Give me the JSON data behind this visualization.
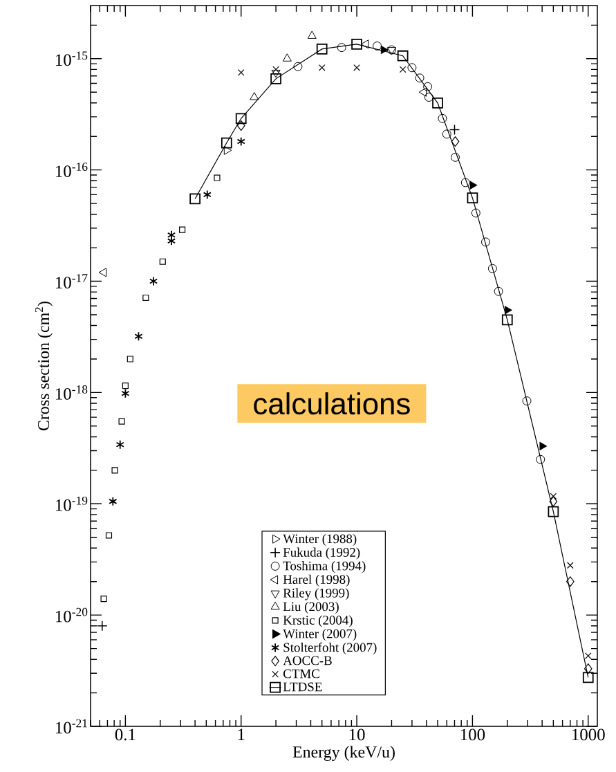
{
  "chart_data": {
    "type": "scatter",
    "xlabel": "Energy (keV/u)",
    "ylabel": "Cross section (cm$^{2}$)",
    "log": "xy",
    "xlim": [
      0.05,
      1200
    ],
    "ylim": [
      1e-21,
      3e-15
    ],
    "xticks": [
      0.1,
      1,
      10,
      100,
      1000
    ],
    "yticks": [
      {
        "value": 1e-21,
        "label": "10$^{-21}$"
      },
      {
        "value": 1e-20,
        "label": "10$^{-20}$"
      },
      {
        "value": 1e-19,
        "label": "10$^{-19}$"
      },
      {
        "value": 1e-18,
        "label": "10$^{-18}$"
      },
      {
        "value": 1e-17,
        "label": "10$^{-17}$"
      },
      {
        "value": 1e-16,
        "label": "10$^{-16}$"
      },
      {
        "value": 1e-15,
        "label": "10$^{-15}$"
      }
    ],
    "grid": false,
    "legend": "bottom",
    "annotations": [
      "calculations"
    ],
    "series": [
      {
        "name": "Winter (1988)",
        "color": "#000000",
        "marker": "triangle",
        "x": [
          0.75
        ],
        "values": [
          1.5e-16
        ]
      },
      {
        "name": "Fukuda (1992)",
        "color": "#000000",
        "marker": "cross",
        "x": [
          0.063,
          70
        ],
        "values": [
          8e-21,
          2.3e-16
        ]
      },
      {
        "name": "Toshima (1994)",
        "color": "#000000",
        "marker": "circle",
        "x": [
          3.1,
          7.4,
          15,
          20,
          30,
          35,
          41,
          42,
          55,
          60,
          71,
          87,
          107,
          130,
          149,
          168,
          295,
          387
        ],
        "values": [
          8.5e-16,
          1.26e-15,
          1.3e-15,
          1.2e-15,
          8.3e-16,
          6.7e-16,
          5.6e-16,
          4.5e-16,
          2.9e-16,
          2.1e-16,
          1.3e-16,
          7.7e-17,
          4.1e-17,
          2.25e-17,
          1.3e-17,
          8.1e-18,
          8.4e-19,
          2.5e-19
        ]
      },
      {
        "name": "Harel (1998)",
        "color": "#000000",
        "marker": "triangle",
        "x": [
          0.065,
          12,
          38
        ],
        "values": [
          1.2e-17,
          1.35e-15,
          5e-16
        ]
      },
      {
        "name": "Riley (1999)",
        "color": "#000000",
        "marker": "triangle",
        "x": [
          2,
          20
        ],
        "values": [
          7.5e-16,
          1.2e-15
        ]
      },
      {
        "name": "Liu (2003)",
        "color": "#000000",
        "marker": "triangle",
        "x": [
          1.3,
          2.5,
          4.1
        ],
        "values": [
          4.5e-16,
          1e-15,
          1.6e-15
        ]
      },
      {
        "name": "Krstic (2004)",
        "color": "#000000",
        "marker": "square",
        "x": [
          0.065,
          0.072,
          0.081,
          0.093,
          0.1,
          0.11,
          0.15,
          0.21,
          0.31,
          0.62
        ],
        "values": [
          1.4e-20,
          5.2e-20,
          2e-19,
          5.5e-19,
          1.15e-18,
          2e-18,
          7.1e-18,
          1.5e-17,
          2.9e-17,
          8.5e-17
        ]
      },
      {
        "name": "Winter (2007)",
        "color": "#000000",
        "marker": "triangle",
        "x": [
          17,
          100,
          200,
          400
        ],
        "values": [
          1.2e-15,
          7.3e-17,
          5.5e-18,
          3.3e-19
        ]
      },
      {
        "name": "Stolterfoht (2007)",
        "color": "#000000",
        "x": [
          0.078,
          0.09,
          0.1,
          0.13,
          0.175,
          0.25,
          0.25,
          0.51,
          1
        ],
        "values": [
          1.05e-19,
          3.4e-19,
          9.8e-19,
          3.2e-18,
          1e-17,
          2.3e-17,
          2.6e-17,
          6e-17,
          1.8e-16
        ]
      },
      {
        "name": "AOCC-B",
        "color": "#000000",
        "marker": "diamond",
        "x": [
          1,
          71,
          500,
          700,
          1000
        ],
        "values": [
          2.5e-16,
          1.8e-16,
          1.05e-19,
          2e-20,
          3.3e-21
        ]
      },
      {
        "name": "CTMC",
        "color": "#000000",
        "marker": "cross",
        "x": [
          1,
          2,
          5,
          10,
          25,
          500,
          700,
          1000
        ],
        "values": [
          7.5e-16,
          8e-16,
          8.3e-16,
          8.3e-16,
          8e-16,
          1.17e-19,
          2.8e-20,
          4.3e-21
        ]
      },
      {
        "name": "LTDSE",
        "color": "#000000",
        "type": "line",
        "line_style": "solid",
        "marker": "square",
        "x": [
          0.4,
          0.75,
          1,
          2,
          5,
          10,
          25,
          50,
          100,
          200,
          500,
          1000
        ],
        "values": [
          5.5e-17,
          1.75e-16,
          2.9e-16,
          6.6e-16,
          1.22e-15,
          1.35e-15,
          1.06e-15,
          4e-16,
          5.6e-17,
          4.5e-18,
          8.5e-20,
          2.75e-21
        ]
      }
    ]
  }
}
